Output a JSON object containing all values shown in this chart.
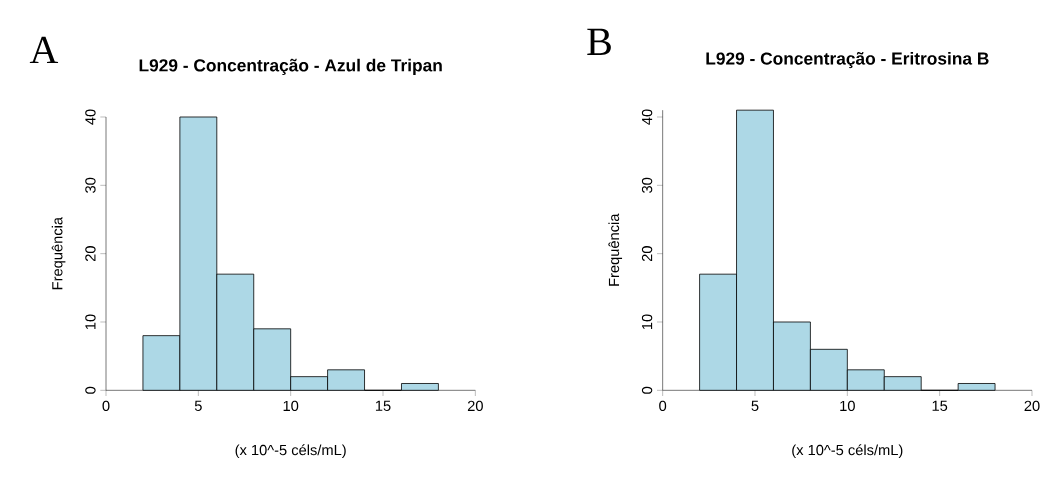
{
  "chart_data": [
    {
      "type": "histogram",
      "title": "L929 - Concentração - Azul de Tripan",
      "xlabel": "(x 10^-5 céls/mL)",
      "ylabel": "Frequência",
      "annotations": [
        "A"
      ],
      "bins": [
        2,
        4,
        6,
        8,
        10,
        12,
        14,
        16,
        18
      ],
      "values": [
        8,
        40,
        17,
        9,
        2,
        3,
        0,
        1
      ],
      "color": "#add8e6",
      "xlim": [
        0,
        20
      ],
      "xticks": [
        0,
        5,
        10,
        15,
        20
      ],
      "ylim": [
        0,
        40
      ],
      "yticks": [
        0,
        10,
        20,
        30,
        40
      ]
    },
    {
      "type": "histogram",
      "title": "L929 - Concentração - Eritrosina B",
      "xlabel": "(x 10^-5 céls/mL)",
      "ylabel": "Frequência",
      "annotations": [
        "B"
      ],
      "bins": [
        2,
        4,
        6,
        8,
        10,
        12,
        14,
        16,
        18
      ],
      "values": [
        17,
        41,
        10,
        6,
        3,
        2,
        0,
        1
      ],
      "color": "#add8e6",
      "xlim": [
        0,
        20
      ],
      "xticks": [
        0,
        5,
        10,
        15,
        20
      ],
      "ylim": [
        0,
        41
      ],
      "yticks": [
        0,
        10,
        20,
        30,
        40
      ]
    }
  ]
}
